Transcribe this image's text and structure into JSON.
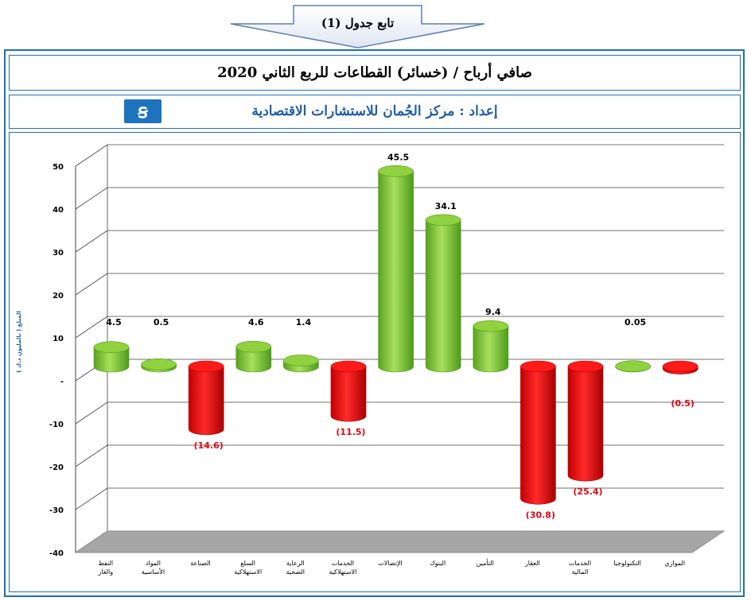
{
  "header_arrow": {
    "label": "تابع جدول (1)"
  },
  "title": "صافي أرباح / (خسائر) القطاعات للربع الثاني 2020",
  "subtitle": "إعداد : مركز الجُمان للاستشارات الاقتصادية",
  "logo_text": "ꞩ",
  "chart_data": {
    "type": "bar",
    "title": "",
    "ylabel": "المبلغ ( بالمليون د.ك )",
    "xlabel": "",
    "ylim": [
      -40,
      50
    ],
    "yticks": [
      "50",
      "40",
      "30",
      "20",
      "10",
      "-",
      "-10",
      "-20",
      "-30",
      "-40"
    ],
    "categories": [
      "النفط والغاز",
      "المواد الأساسية",
      "الصناعة",
      "السلع الاستهلاكية",
      "الرعاية الصحية",
      "الخدمات الاستهلاكية",
      "الإتصالات",
      "البنوك",
      "التأمين",
      "العقار",
      "الخدمات المالية",
      "التكنولوجيا",
      "الموازي"
    ],
    "values": [
      4.5,
      0.5,
      -14.6,
      4.6,
      1.4,
      -11.5,
      45.5,
      34.1,
      9.4,
      -30.8,
      -25.4,
      0.05,
      -0.5
    ],
    "data_labels": [
      "4.5",
      "0.5",
      "(14.6)",
      "4.6",
      "1.4",
      "(11.5)",
      "45.5",
      "34.1",
      "9.4",
      "(30.8)",
      "(25.4)",
      "0.05",
      "(0.5)"
    ],
    "colors": {
      "positive": "#7cc432",
      "positive_dark": "#4e9a1c",
      "negative": "#e30613",
      "negative_dark": "#b00000",
      "floor": "#a6a6a6",
      "label_negative": "#e30613",
      "label_positive": "#000000"
    },
    "grid": true,
    "legend": "none"
  }
}
